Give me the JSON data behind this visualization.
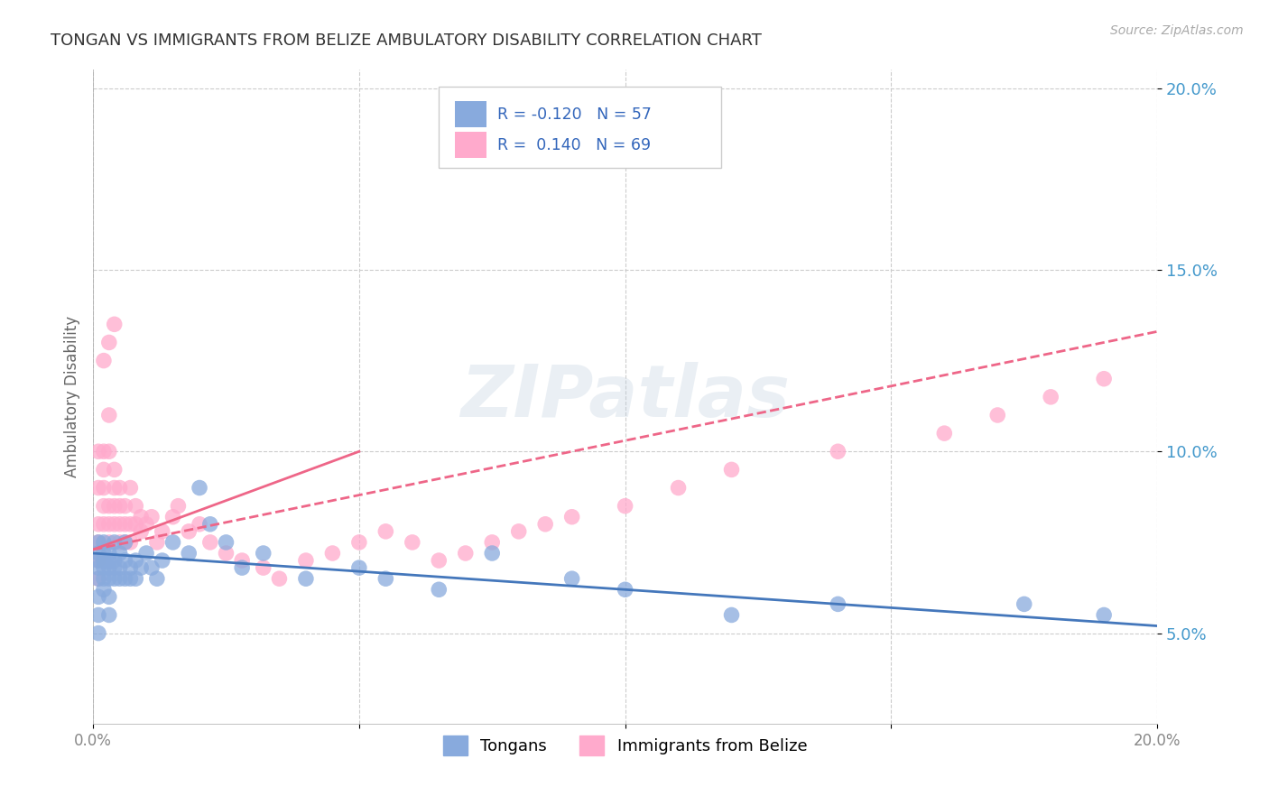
{
  "title": "TONGAN VS IMMIGRANTS FROM BELIZE AMBULATORY DISABILITY CORRELATION CHART",
  "source": "Source: ZipAtlas.com",
  "ylabel": "Ambulatory Disability",
  "legend_labels": [
    "Tongans",
    "Immigrants from Belize"
  ],
  "blue_color": "#88AADD",
  "pink_color": "#FFAACC",
  "blue_line_color": "#4477BB",
  "pink_line_color": "#EE6688",
  "xmin": 0.0,
  "xmax": 0.2,
  "ymin": 0.025,
  "ymax": 0.205,
  "watermark_text": "ZIPatlas",
  "blue_scatter_x": [
    0.001,
    0.001,
    0.001,
    0.001,
    0.001,
    0.001,
    0.001,
    0.001,
    0.002,
    0.002,
    0.002,
    0.002,
    0.002,
    0.002,
    0.003,
    0.003,
    0.003,
    0.003,
    0.003,
    0.003,
    0.004,
    0.004,
    0.004,
    0.004,
    0.005,
    0.005,
    0.005,
    0.006,
    0.006,
    0.006,
    0.007,
    0.007,
    0.008,
    0.008,
    0.009,
    0.01,
    0.011,
    0.012,
    0.013,
    0.015,
    0.018,
    0.02,
    0.022,
    0.025,
    0.028,
    0.032,
    0.04,
    0.05,
    0.055,
    0.065,
    0.075,
    0.09,
    0.1,
    0.12,
    0.14,
    0.175,
    0.19
  ],
  "blue_scatter_y": [
    0.065,
    0.068,
    0.07,
    0.072,
    0.075,
    0.06,
    0.055,
    0.05,
    0.065,
    0.07,
    0.072,
    0.075,
    0.068,
    0.062,
    0.065,
    0.068,
    0.07,
    0.072,
    0.06,
    0.055,
    0.065,
    0.068,
    0.07,
    0.075,
    0.065,
    0.068,
    0.072,
    0.065,
    0.07,
    0.075,
    0.065,
    0.068,
    0.065,
    0.07,
    0.068,
    0.072,
    0.068,
    0.065,
    0.07,
    0.075,
    0.072,
    0.09,
    0.08,
    0.075,
    0.068,
    0.072,
    0.065,
    0.068,
    0.065,
    0.062,
    0.072,
    0.065,
    0.062,
    0.055,
    0.058,
    0.058,
    0.055
  ],
  "pink_scatter_x": [
    0.001,
    0.001,
    0.001,
    0.001,
    0.001,
    0.001,
    0.002,
    0.002,
    0.002,
    0.002,
    0.002,
    0.003,
    0.003,
    0.003,
    0.003,
    0.003,
    0.004,
    0.004,
    0.004,
    0.004,
    0.005,
    0.005,
    0.005,
    0.005,
    0.006,
    0.006,
    0.006,
    0.007,
    0.007,
    0.007,
    0.008,
    0.008,
    0.009,
    0.009,
    0.01,
    0.011,
    0.012,
    0.013,
    0.015,
    0.016,
    0.018,
    0.02,
    0.022,
    0.025,
    0.028,
    0.032,
    0.035,
    0.04,
    0.045,
    0.05,
    0.055,
    0.06,
    0.065,
    0.07,
    0.075,
    0.08,
    0.085,
    0.09,
    0.1,
    0.11,
    0.12,
    0.14,
    0.16,
    0.17,
    0.18,
    0.19,
    0.002,
    0.003,
    0.004
  ],
  "pink_scatter_y": [
    0.065,
    0.07,
    0.075,
    0.08,
    0.09,
    0.1,
    0.08,
    0.085,
    0.09,
    0.095,
    0.1,
    0.075,
    0.08,
    0.085,
    0.1,
    0.11,
    0.08,
    0.085,
    0.09,
    0.095,
    0.075,
    0.08,
    0.085,
    0.09,
    0.075,
    0.08,
    0.085,
    0.075,
    0.08,
    0.09,
    0.08,
    0.085,
    0.078,
    0.082,
    0.08,
    0.082,
    0.075,
    0.078,
    0.082,
    0.085,
    0.078,
    0.08,
    0.075,
    0.072,
    0.07,
    0.068,
    0.065,
    0.07,
    0.072,
    0.075,
    0.078,
    0.075,
    0.07,
    0.072,
    0.075,
    0.078,
    0.08,
    0.082,
    0.085,
    0.09,
    0.095,
    0.1,
    0.105,
    0.11,
    0.115,
    0.12,
    0.125,
    0.13,
    0.135
  ],
  "blue_line_x": [
    0.0,
    0.2
  ],
  "blue_line_y": [
    0.072,
    0.052
  ],
  "pink_solid_line_x": [
    0.0,
    0.05
  ],
  "pink_solid_line_y": [
    0.073,
    0.1
  ],
  "pink_dashed_line_x": [
    0.0,
    0.2
  ],
  "pink_dashed_line_y": [
    0.073,
    0.133
  ],
  "yticks": [
    0.05,
    0.1,
    0.15,
    0.2
  ],
  "ytick_labels": [
    "5.0%",
    "10.0%",
    "15.0%",
    "20.0%"
  ],
  "xticks": [
    0.0,
    0.05,
    0.1,
    0.15,
    0.2
  ],
  "xtick_labels": [
    "0.0%",
    "",
    "",
    "",
    "20.0%"
  ],
  "bg_color": "#FFFFFF",
  "grid_color": "#CCCCCC"
}
